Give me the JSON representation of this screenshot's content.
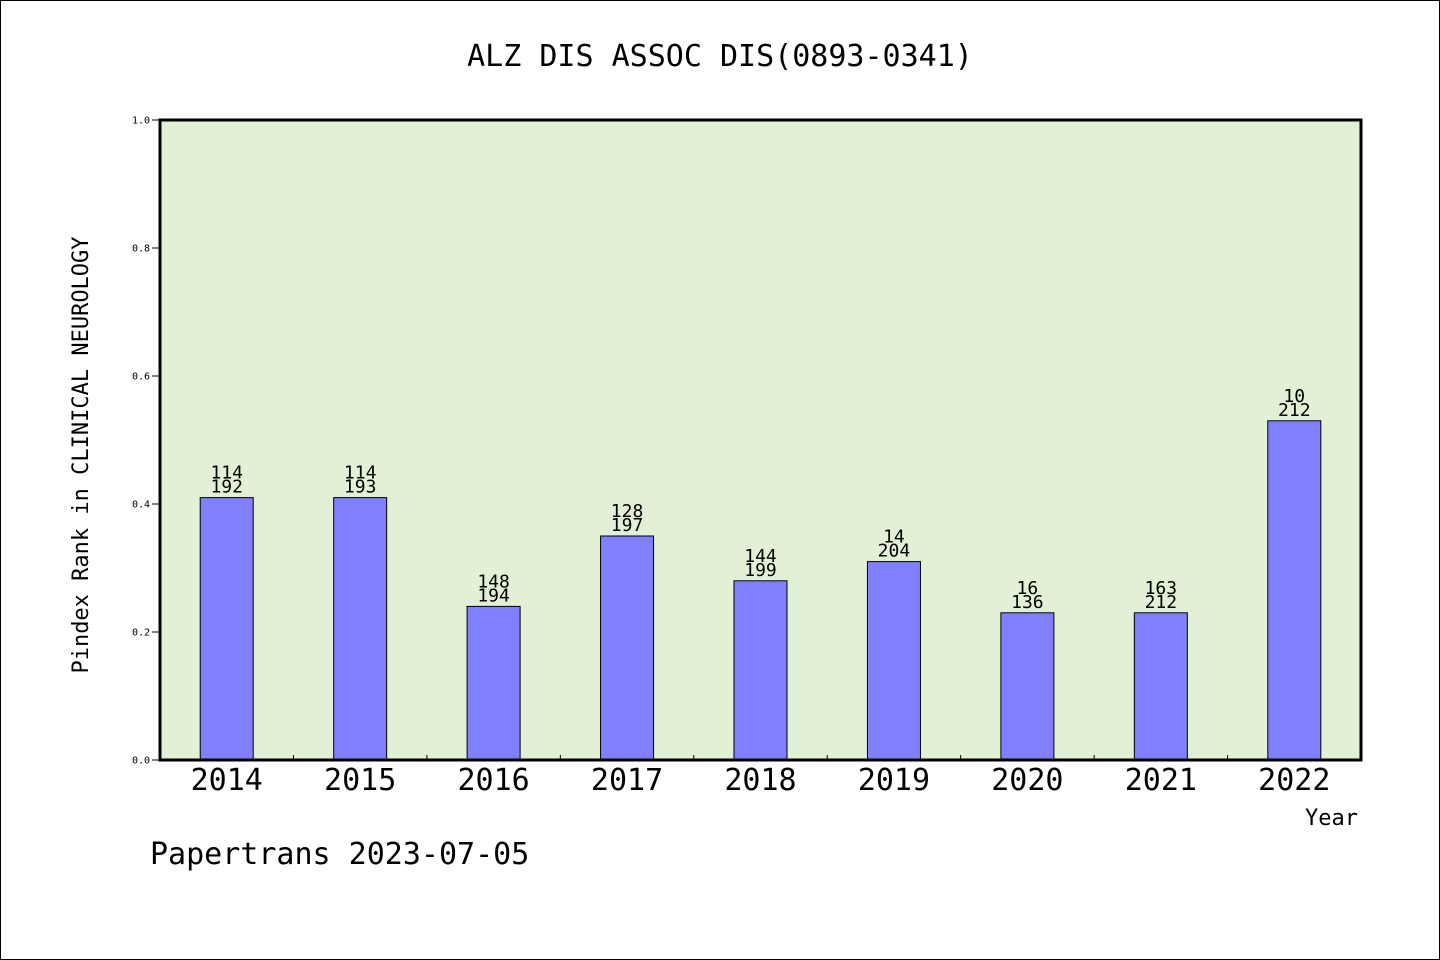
{
  "chart_data": {
    "type": "bar",
    "title": "ALZ DIS ASSOC DIS(0893-0341)",
    "xlabel": "Year",
    "ylabel": "Pindex Rank in CLINICAL NEUROLOGY",
    "categories": [
      "2014",
      "2015",
      "2016",
      "2017",
      "2018",
      "2019",
      "2020",
      "2021",
      "2022"
    ],
    "values": [
      0.41,
      0.41,
      0.24,
      0.35,
      0.28,
      0.31,
      0.23,
      0.23,
      0.53
    ],
    "rank_labels": [
      "114",
      "114",
      "148",
      "128",
      "144",
      "14",
      "16",
      "163",
      "10"
    ],
    "total_labels": [
      "192",
      "193",
      "194",
      "197",
      "199",
      "204",
      "136",
      "212",
      "212"
    ],
    "ylim": [
      0,
      1.0
    ],
    "yticks": [
      "0.0",
      "0.2",
      "0.4",
      "0.6",
      "0.8",
      "1.0"
    ],
    "grid": false,
    "legend": "none",
    "colors": {
      "bar": "#8080ff",
      "plot_background": "#e2f0d5",
      "axis": "#000000"
    }
  },
  "footer": {
    "text": "Papertrans 2023-07-05"
  }
}
